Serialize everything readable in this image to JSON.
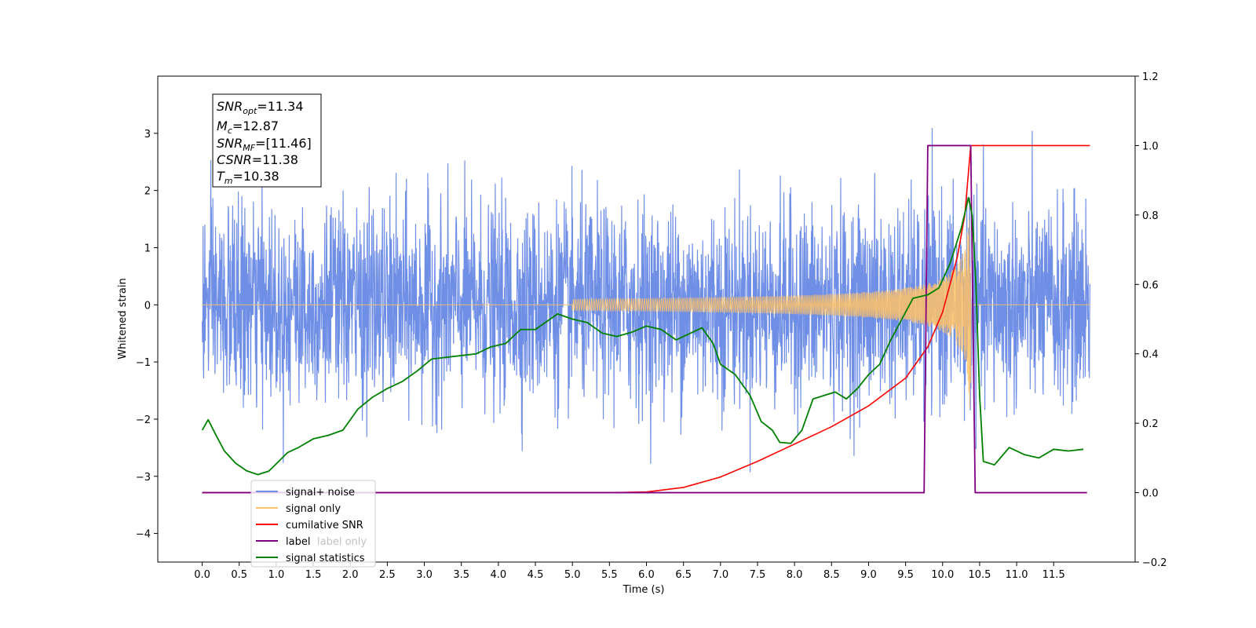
{
  "chart_data": {
    "type": "line",
    "xlabel": "Time (s)",
    "ylabel": "Whitened strain",
    "xlim": [
      -0.6,
      12.6
    ],
    "ylim": [
      -4.5,
      4.0
    ],
    "y2lim": [
      -0.2,
      1.2
    ],
    "x_ticks": [
      "0.0",
      "0.5",
      "1.0",
      "1.5",
      "2.0",
      "2.5",
      "3.0",
      "3.5",
      "4.0",
      "4.5",
      "5.0",
      "5.5",
      "6.0",
      "6.5",
      "7.0",
      "7.5",
      "8.0",
      "8.5",
      "9.0",
      "9.5",
      "10.0",
      "10.5",
      "11.0",
      "11.5"
    ],
    "y_ticks": [
      "3",
      "2",
      "1",
      "0",
      "−1",
      "−2",
      "−3",
      "−4"
    ],
    "y2_ticks": [
      "1.2",
      "1.0",
      "0.8",
      "0.6",
      "0.4",
      "0.2",
      "0.0",
      "−0.2"
    ],
    "legend_position": "lower-left",
    "info_box": {
      "snr_opt_base": "SNR",
      "snr_opt_sub": "opt",
      "snr_opt_value": "=11.34",
      "mc_base": "M",
      "mc_sub": "c",
      "mc_value": "=12.87",
      "snr_mf_base": "SNR",
      "snr_mf_sub": "MF",
      "snr_mf_value": "=[11.46]",
      "csnr_base": "CSNR",
      "csnr_value": "=11.38",
      "tm_base": "T",
      "tm_sub": "m",
      "tm_value": "=10.38"
    },
    "series": [
      {
        "name": "signal+ noise",
        "color": "#6f8ee6",
        "axis": "left",
        "noise_std": 0.85,
        "x_start": 0.0,
        "x_end": 11.99
      },
      {
        "name": "signal only",
        "color": "#ffc266",
        "axis": "left",
        "merger_time": 10.38,
        "peak_amplitude": 2.3
      },
      {
        "name": "cumilative SNR",
        "color": "#ff0000",
        "axis": "right",
        "points": [
          [
            0.0,
            0.0
          ],
          [
            5.5,
            0.0
          ],
          [
            6.0,
            0.002
          ],
          [
            6.5,
            0.015
          ],
          [
            7.0,
            0.045
          ],
          [
            7.5,
            0.09
          ],
          [
            8.0,
            0.14
          ],
          [
            8.5,
            0.19
          ],
          [
            9.0,
            0.25
          ],
          [
            9.5,
            0.33
          ],
          [
            9.8,
            0.42
          ],
          [
            10.0,
            0.52
          ],
          [
            10.2,
            0.68
          ],
          [
            10.3,
            0.8
          ],
          [
            10.38,
            1.0
          ],
          [
            11.99,
            1.0
          ]
        ]
      },
      {
        "name": "label",
        "color": "#800080",
        "axis": "right",
        "points": [
          [
            0.0,
            0.0
          ],
          [
            9.75,
            0.0
          ],
          [
            9.8,
            1.0
          ],
          [
            10.38,
            1.0
          ],
          [
            10.44,
            0.0
          ],
          [
            11.95,
            0.0
          ]
        ]
      },
      {
        "name": "label only",
        "color": "#bfa0bf",
        "axis": "right",
        "hidden": true,
        "points": []
      },
      {
        "name": "signal statistics",
        "color": "#008000",
        "axis": "right",
        "points": [
          [
            0.0,
            0.18
          ],
          [
            0.08,
            0.21
          ],
          [
            0.2,
            0.16
          ],
          [
            0.3,
            0.12
          ],
          [
            0.45,
            0.085
          ],
          [
            0.6,
            0.063
          ],
          [
            0.75,
            0.052
          ],
          [
            0.9,
            0.062
          ],
          [
            1.0,
            0.083
          ],
          [
            1.15,
            0.115
          ],
          [
            1.3,
            0.13
          ],
          [
            1.5,
            0.155
          ],
          [
            1.7,
            0.165
          ],
          [
            1.9,
            0.18
          ],
          [
            2.1,
            0.24
          ],
          [
            2.3,
            0.275
          ],
          [
            2.5,
            0.3
          ],
          [
            2.7,
            0.32
          ],
          [
            2.9,
            0.35
          ],
          [
            3.1,
            0.385
          ],
          [
            3.3,
            0.39
          ],
          [
            3.5,
            0.395
          ],
          [
            3.7,
            0.4
          ],
          [
            3.9,
            0.42
          ],
          [
            4.1,
            0.43
          ],
          [
            4.3,
            0.47
          ],
          [
            4.5,
            0.47
          ],
          [
            4.7,
            0.5
          ],
          [
            4.8,
            0.515
          ],
          [
            5.0,
            0.5
          ],
          [
            5.2,
            0.49
          ],
          [
            5.4,
            0.46
          ],
          [
            5.6,
            0.45
          ],
          [
            5.8,
            0.462
          ],
          [
            6.0,
            0.48
          ],
          [
            6.2,
            0.47
          ],
          [
            6.4,
            0.44
          ],
          [
            6.6,
            0.46
          ],
          [
            6.75,
            0.475
          ],
          [
            6.9,
            0.43
          ],
          [
            7.0,
            0.37
          ],
          [
            7.2,
            0.34
          ],
          [
            7.4,
            0.28
          ],
          [
            7.55,
            0.205
          ],
          [
            7.7,
            0.18
          ],
          [
            7.8,
            0.145
          ],
          [
            7.95,
            0.142
          ],
          [
            8.1,
            0.18
          ],
          [
            8.25,
            0.27
          ],
          [
            8.4,
            0.28
          ],
          [
            8.55,
            0.29
          ],
          [
            8.7,
            0.27
          ],
          [
            8.85,
            0.3
          ],
          [
            9.0,
            0.34
          ],
          [
            9.15,
            0.37
          ],
          [
            9.3,
            0.44
          ],
          [
            9.45,
            0.5
          ],
          [
            9.6,
            0.56
          ],
          [
            9.8,
            0.57
          ],
          [
            9.95,
            0.59
          ],
          [
            10.1,
            0.66
          ],
          [
            10.25,
            0.76
          ],
          [
            10.35,
            0.85
          ],
          [
            10.4,
            0.8
          ],
          [
            10.45,
            0.6
          ],
          [
            10.5,
            0.28
          ],
          [
            10.55,
            0.09
          ],
          [
            10.7,
            0.08
          ],
          [
            10.9,
            0.13
          ],
          [
            11.1,
            0.11
          ],
          [
            11.3,
            0.1
          ],
          [
            11.5,
            0.125
          ],
          [
            11.7,
            0.12
          ],
          [
            11.9,
            0.125
          ]
        ]
      }
    ]
  }
}
